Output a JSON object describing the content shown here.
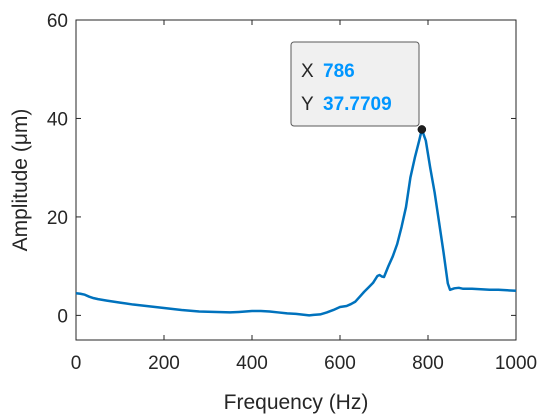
{
  "chart_data": {
    "type": "line",
    "title": "",
    "xlabel": "Frequency (Hz)",
    "ylabel": "Amplitude (μm)",
    "xlim": [
      0,
      1000
    ],
    "ylim": [
      -5,
      60
    ],
    "xticks": [
      0,
      200,
      400,
      600,
      800,
      1000
    ],
    "yticks": [
      0,
      20,
      40,
      60
    ],
    "grid": false,
    "colors": {
      "line": "#0072BD",
      "datatip_value": "#0096ff",
      "marker": "#1f1f1f",
      "axis": "#262626"
    },
    "series": [
      {
        "x": [
          0,
          10,
          20,
          30,
          40,
          50,
          70,
          100,
          130,
          160,
          200,
          240,
          280,
          320,
          350,
          370,
          400,
          420,
          440,
          460,
          480,
          500,
          520,
          530,
          540,
          555,
          570,
          585,
          600,
          615,
          625,
          635,
          645,
          655,
          665,
          675,
          685,
          690,
          695,
          700,
          710,
          720,
          730,
          740,
          750,
          760,
          770,
          780,
          786,
          795,
          805,
          815,
          825,
          835,
          845,
          850,
          860,
          870,
          880,
          900,
          920,
          940,
          960,
          980,
          1000
        ],
        "y": [
          4.5,
          4.4,
          4.2,
          3.8,
          3.5,
          3.3,
          3.0,
          2.6,
          2.2,
          1.9,
          1.5,
          1.1,
          0.8,
          0.7,
          0.6,
          0.7,
          0.9,
          0.9,
          0.8,
          0.6,
          0.4,
          0.3,
          0.1,
          0.0,
          0.1,
          0.2,
          0.6,
          1.1,
          1.7,
          1.9,
          2.3,
          2.8,
          3.8,
          4.8,
          5.7,
          6.6,
          8.0,
          8.2,
          7.9,
          7.8,
          10.0,
          12.0,
          14.5,
          18.0,
          22.0,
          28.0,
          32.0,
          35.5,
          37.7709,
          35.5,
          30.0,
          25.0,
          19.0,
          13.0,
          6.5,
          5.2,
          5.5,
          5.6,
          5.4,
          5.4,
          5.3,
          5.2,
          5.2,
          5.1,
          5.0
        ]
      }
    ],
    "datatip": {
      "x_key": "X",
      "x_value": "786",
      "y_key": "Y",
      "y_value": "37.7709",
      "point": {
        "x": 786,
        "y": 37.7709
      }
    }
  }
}
